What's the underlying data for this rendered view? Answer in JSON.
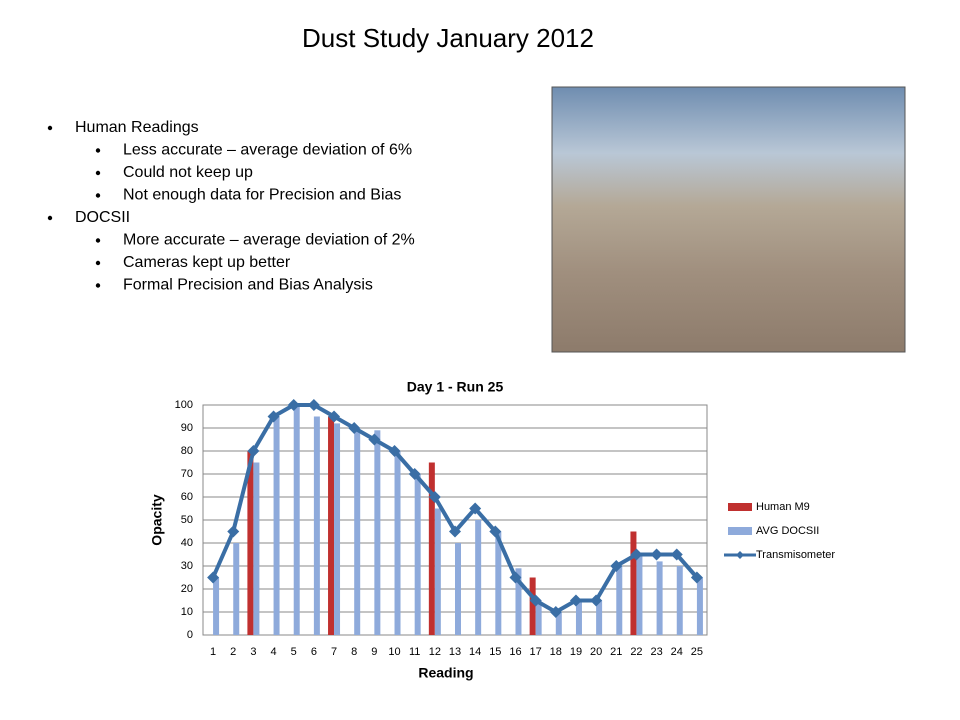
{
  "slide": {
    "title": "Dust Study January 2012",
    "bullets": [
      {
        "text": "Human Readings",
        "sub": [
          "Less accurate – average deviation of 6%",
          "Could not keep up",
          "Not enough data for Precision and Bias"
        ]
      },
      {
        "text": "DOCSII",
        "sub": [
          "More accurate – average deviation of 2%",
          "Cameras kept up better",
          "Formal Precision and Bias Analysis"
        ]
      }
    ]
  },
  "chart_data": {
    "type": "bar",
    "title": "Day 1 - Run 25",
    "x_label": "Reading",
    "y_label": "Opacity",
    "categories": [
      "1",
      "2",
      "3",
      "4",
      "5",
      "6",
      "7",
      "8",
      "9",
      "10",
      "11",
      "12",
      "13",
      "14",
      "15",
      "16",
      "17",
      "18",
      "19",
      "20",
      "21",
      "22",
      "23",
      "24",
      "25"
    ],
    "series": [
      {
        "name": "Human M9",
        "color": "#c0302f",
        "kind": "bar",
        "values": [
          null,
          null,
          80,
          null,
          null,
          null,
          95,
          null,
          null,
          null,
          null,
          75,
          null,
          null,
          null,
          null,
          25,
          null,
          null,
          null,
          null,
          45,
          null,
          null,
          null
        ]
      },
      {
        "name": "AVG DOCSII",
        "color": "#8eaadb",
        "kind": "bar",
        "values": [
          25,
          40,
          75,
          95,
          100,
          95,
          92,
          90,
          89,
          80,
          70,
          55,
          40,
          50,
          45,
          29,
          15,
          10,
          15,
          15,
          30,
          35,
          32,
          30,
          25
        ]
      },
      {
        "name": "Transmisometer",
        "color": "#3a6ea5",
        "kind": "line",
        "values": [
          25,
          45,
          80,
          95,
          100,
          100,
          95,
          90,
          85,
          80,
          70,
          60,
          45,
          55,
          45,
          25,
          15,
          10,
          15,
          15,
          30,
          35,
          35,
          35,
          25
        ]
      }
    ],
    "ylim": [
      0,
      100
    ],
    "yticks": [
      0,
      10,
      20,
      30,
      40,
      50,
      60,
      70,
      80,
      90,
      100
    ],
    "grid": true,
    "legend": "right"
  }
}
